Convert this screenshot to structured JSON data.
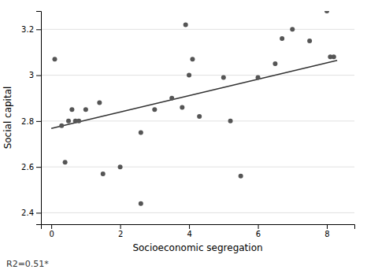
{
  "chart_data": {
    "type": "scatter",
    "xlabel": "Socioeconomic segregation",
    "ylabel": "Social capital",
    "annotation": "R2=0.51*",
    "series": [
      {
        "type": "scatter",
        "color": "#555555",
        "x": [
          0.1,
          0.3,
          0.4,
          0.5,
          0.6,
          0.7,
          0.8,
          1.0,
          1.4,
          1.5,
          2.0,
          2.6,
          2.6,
          3.0,
          3.5,
          3.8,
          3.9,
          4.0,
          4.1,
          4.3,
          5.0,
          5.2,
          5.5,
          6.0,
          6.5,
          6.7,
          7.0,
          7.5,
          8.0,
          8.1,
          8.2
        ],
        "values": [
          3.07,
          2.78,
          2.62,
          2.8,
          2.85,
          2.8,
          2.8,
          2.85,
          2.88,
          2.57,
          2.6,
          2.75,
          2.44,
          2.85,
          2.9,
          2.86,
          3.22,
          3.0,
          3.07,
          2.82,
          2.99,
          2.8,
          2.56,
          2.99,
          3.05,
          3.16,
          3.2,
          3.15,
          3.28,
          3.08,
          3.08
        ]
      },
      {
        "type": "line",
        "color": "#333333",
        "x": [
          0.0,
          8.3
        ],
        "values": [
          2.768,
          3.065
        ]
      }
    ],
    "xlim": [
      -0.3,
      8.8
    ],
    "ylim": [
      2.35,
      3.28
    ],
    "xticks": [
      0,
      2,
      4,
      6,
      8
    ],
    "yticks": [
      2.4,
      2.6,
      2.8,
      3,
      3.2
    ],
    "grid": "y"
  }
}
